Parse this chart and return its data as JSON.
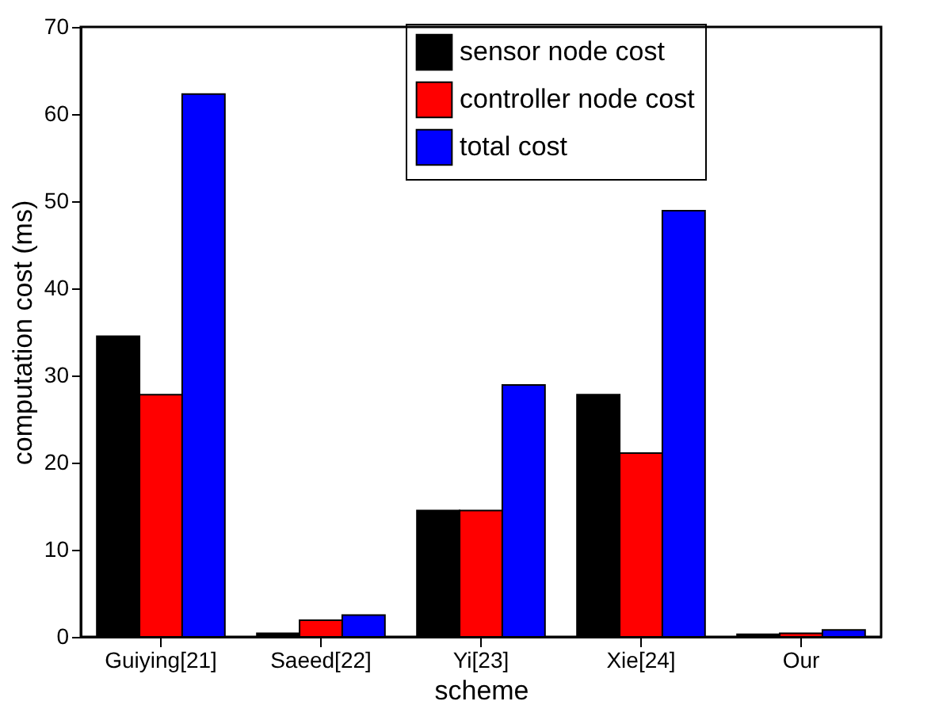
{
  "chart_data": {
    "type": "bar",
    "xlabel": "scheme",
    "ylabel": "computation cost (ms)",
    "categories": [
      "Guiying[21]",
      "Saeed[22]",
      "Yi[23]",
      "Xie[24]",
      "Our"
    ],
    "series": [
      {
        "name": "sensor node cost",
        "color": "#000000",
        "values": [
          34.5,
          0.4,
          14.5,
          27.8,
          0.3
        ]
      },
      {
        "name": "controller node cost",
        "color": "#ff0000",
        "values": [
          27.8,
          1.9,
          14.5,
          21.1,
          0.4
        ]
      },
      {
        "name": "total cost",
        "color": "#0000ff",
        "values": [
          62.3,
          2.5,
          28.9,
          48.9,
          0.8
        ]
      }
    ],
    "ylim": [
      0,
      70
    ],
    "yticks": [
      0,
      10,
      20,
      30,
      40,
      50,
      60,
      70
    ],
    "grid": false,
    "legend": "top"
  }
}
